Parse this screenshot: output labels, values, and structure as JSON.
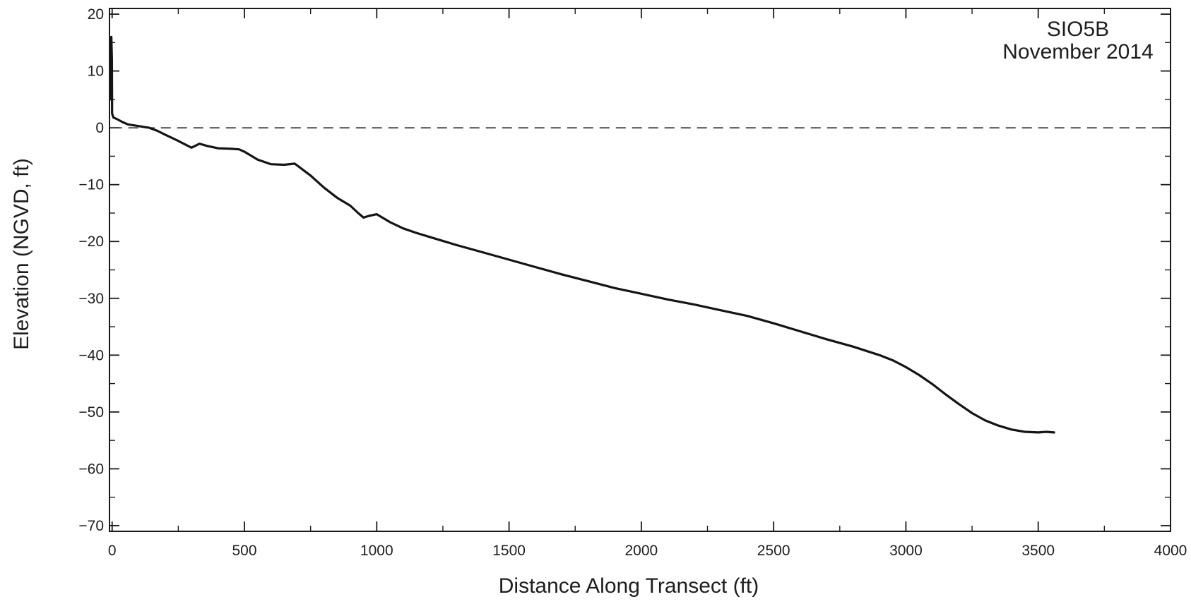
{
  "chart_data": {
    "type": "line",
    "title": "",
    "annotation": [
      "SIO5B",
      "November 2014"
    ],
    "xlabel": "Distance Along Transect (ft)",
    "ylabel": "Elevation (NGVD, ft)",
    "xlim": [
      -10,
      4000
    ],
    "ylim": [
      -71,
      21
    ],
    "x_major_ticks": [
      0,
      500,
      1000,
      1500,
      2000,
      2500,
      3000,
      3500,
      4000
    ],
    "x_tick_labels": [
      "0",
      "500",
      "1000",
      "1500",
      "2000",
      "2500",
      "3000",
      "3500",
      "4000"
    ],
    "y_major_ticks": [
      20,
      10,
      0,
      -10,
      -20,
      -30,
      -40,
      -50,
      -60,
      -70
    ],
    "y_tick_labels": [
      "20",
      "10",
      "0",
      "−10",
      "−20",
      "−30",
      "−40",
      "−50",
      "−60",
      "−70"
    ],
    "reference_line": {
      "y": 0,
      "style": "dashed",
      "x_range": [
        0,
        4000
      ]
    },
    "grid": false,
    "series": [
      {
        "x": [
          -5,
          -3,
          -1,
          0,
          2,
          5,
          20,
          40,
          60,
          100,
          140,
          170,
          200,
          250,
          300,
          330,
          360,
          400,
          450,
          480,
          500,
          550,
          600,
          650,
          690,
          750,
          800,
          850,
          900,
          930,
          950,
          970,
          1000,
          1050,
          1100,
          1150,
          1200,
          1300,
          1400,
          1500,
          1600,
          1700,
          1800,
          1900,
          2000,
          2100,
          2200,
          2300,
          2400,
          2500,
          2600,
          2700,
          2800,
          2900,
          2950,
          3000,
          3050,
          3100,
          3150,
          3200,
          3250,
          3300,
          3350,
          3400,
          3450,
          3500,
          3530,
          3560
        ],
        "y": [
          5,
          16,
          12,
          2.5,
          2.2,
          1.8,
          1.5,
          1,
          0.6,
          0.3,
          0,
          -0.5,
          -1.2,
          -2.3,
          -3.5,
          -2.8,
          -3.2,
          -3.6,
          -3.7,
          -3.8,
          -4.2,
          -5.6,
          -6.4,
          -6.5,
          -6.3,
          -8.4,
          -10.5,
          -12.3,
          -13.7,
          -15,
          -15.8,
          -15.5,
          -15.2,
          -16.6,
          -17.7,
          -18.5,
          -19.2,
          -20.6,
          -21.9,
          -23.2,
          -24.5,
          -25.8,
          -27,
          -28.2,
          -29.2,
          -30.2,
          -31.1,
          -32.1,
          -33.1,
          -34.4,
          -35.8,
          -37.2,
          -38.5,
          -40,
          -40.9,
          -42.1,
          -43.5,
          -45.1,
          -46.9,
          -48.6,
          -50.2,
          -51.5,
          -52.4,
          -53.1,
          -53.5,
          -53.6,
          -53.5,
          -53.6
        ]
      }
    ]
  }
}
